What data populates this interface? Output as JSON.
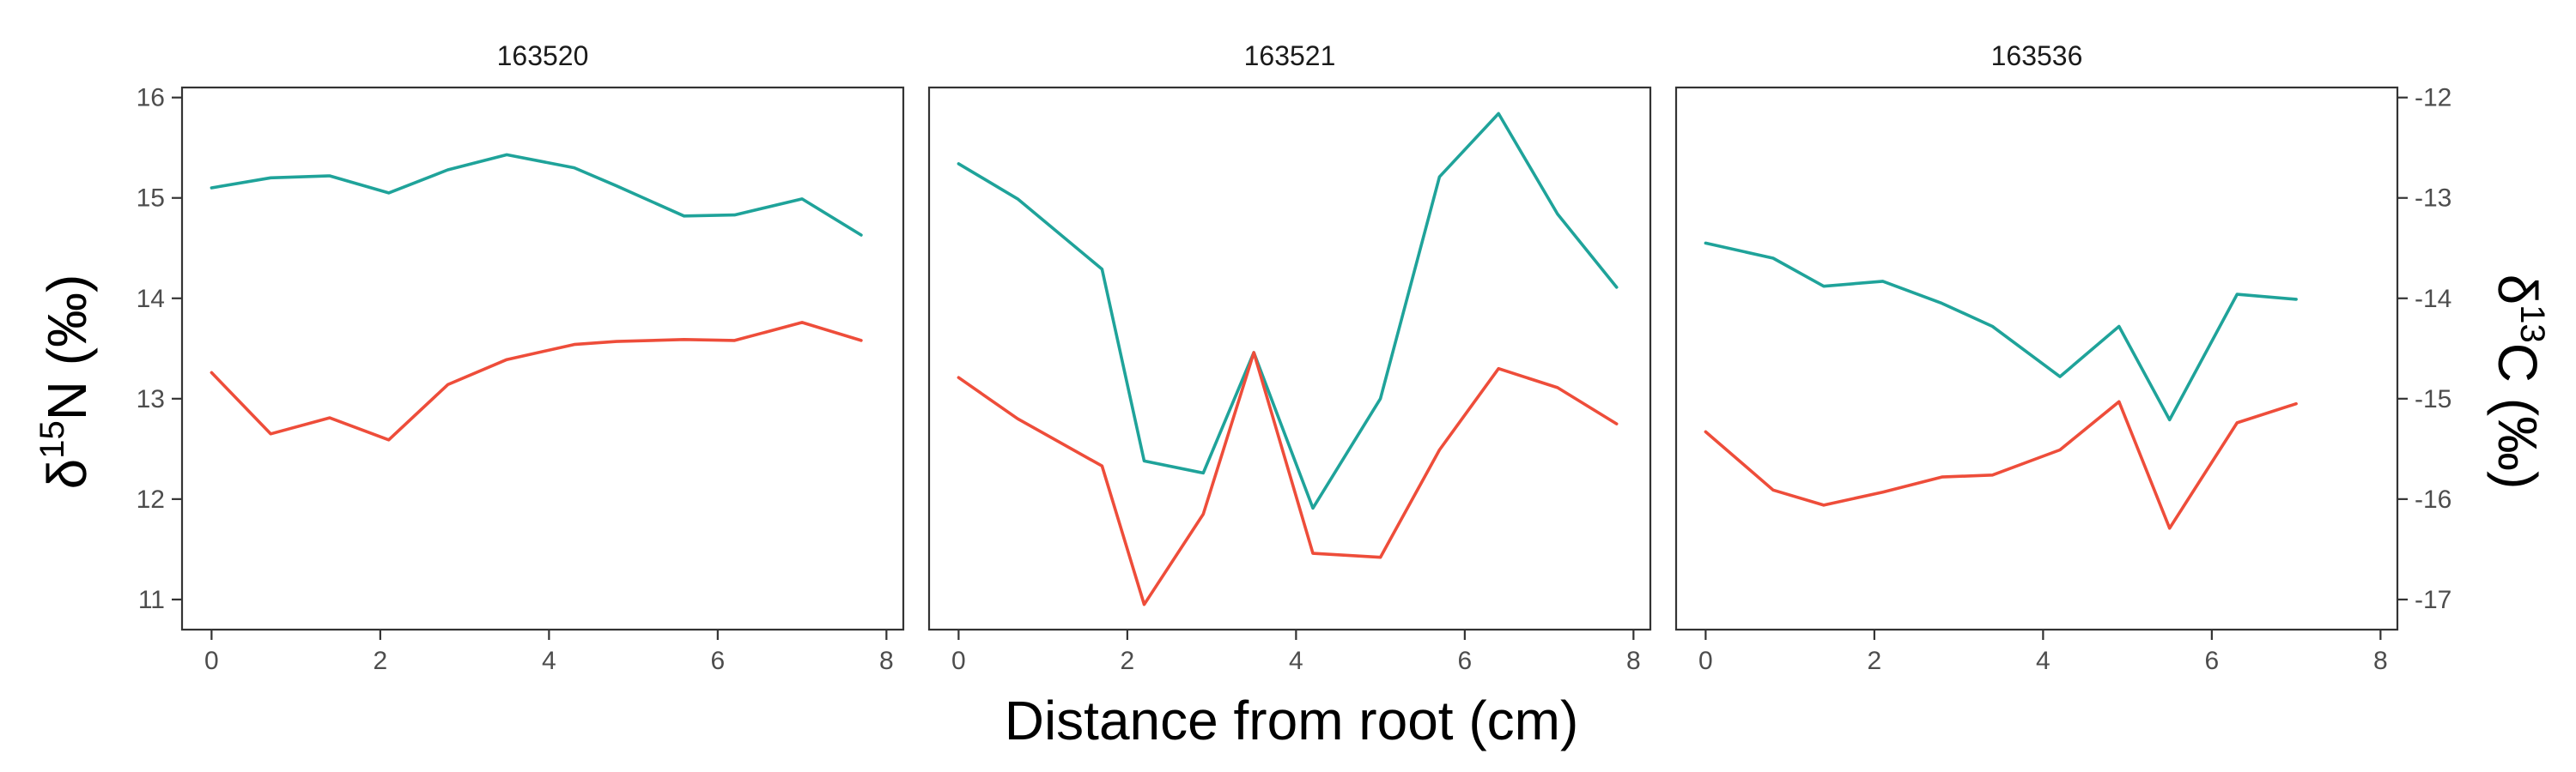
{
  "chart_data": {
    "type": "line",
    "xlabel": "Distance from root (cm)",
    "ylabel_left": {
      "base": "δ",
      "sup": "15",
      "rest": "N (‰)"
    },
    "ylabel_right": {
      "base": "δ",
      "sup": "13",
      "rest": "C (‰)"
    },
    "xlim": [
      -0.35,
      8.2
    ],
    "x_ticks": [
      0,
      2,
      4,
      6,
      8
    ],
    "left_axis": {
      "ylim": [
        10.7,
        16.1
      ],
      "ticks": [
        11,
        12,
        13,
        14,
        15,
        16
      ]
    },
    "right_axis": {
      "ylim": [
        -17.3,
        -11.9
      ],
      "ticks": [
        -17,
        -16,
        -15,
        -14,
        -13,
        -12
      ]
    },
    "grid": false,
    "colors": {
      "teal": "#1fa39a",
      "red": "#ee4d3a"
    },
    "panels": [
      {
        "title": "163520",
        "series": [
          {
            "color": "#1fa39a",
            "axis": "left",
            "x": [
              0,
              0.7,
              1.4,
              2.1,
              2.8,
              3.5,
              4.3,
              4.8,
              5.6,
              6.2,
              7.0,
              7.7
            ],
            "y": [
              15.1,
              15.2,
              15.22,
              15.05,
              15.28,
              15.43,
              15.3,
              15.12,
              14.82,
              14.83,
              14.99,
              14.63
            ]
          },
          {
            "color": "#ee4d3a",
            "axis": "left",
            "x": [
              0,
              0.7,
              1.4,
              2.1,
              2.8,
              3.5,
              4.3,
              4.8,
              5.6,
              6.2,
              7.0,
              7.7
            ],
            "y": [
              13.26,
              12.65,
              12.81,
              12.59,
              13.14,
              13.39,
              13.54,
              13.57,
              13.59,
              13.58,
              13.76,
              13.58
            ]
          }
        ]
      },
      {
        "title": "163521",
        "series": [
          {
            "color": "#1fa39a",
            "axis": "left",
            "x": [
              0,
              0.7,
              1.7,
              2.2,
              2.9,
              3.5,
              4.2,
              5.0,
              5.7,
              6.4,
              7.1,
              7.8
            ],
            "y": [
              15.34,
              14.99,
              14.29,
              12.38,
              12.26,
              13.46,
              11.91,
              13.0,
              15.21,
              15.84,
              14.84,
              14.11
            ]
          },
          {
            "color": "#ee4d3a",
            "axis": "left",
            "x": [
              0,
              0.7,
              1.7,
              2.2,
              2.9,
              3.5,
              4.2,
              5.0,
              5.7,
              6.4,
              7.1,
              7.8
            ],
            "y": [
              13.21,
              12.8,
              12.33,
              10.95,
              11.85,
              13.46,
              11.46,
              11.42,
              12.49,
              13.3,
              13.11,
              12.75
            ]
          }
        ]
      },
      {
        "title": "163536",
        "series": [
          {
            "color": "#1fa39a",
            "axis": "right",
            "x": [
              0,
              0.8,
              1.4,
              2.1,
              2.8,
              3.4,
              4.2,
              4.9,
              5.5,
              6.3,
              7.0
            ],
            "y": [
              -13.45,
              -13.6,
              -13.88,
              -13.83,
              -14.05,
              -14.28,
              -14.78,
              -14.28,
              -15.21,
              -13.96,
              -14.01
            ]
          },
          {
            "color": "#ee4d3a",
            "axis": "right",
            "x": [
              0,
              0.8,
              1.4,
              2.1,
              2.8,
              3.4,
              4.2,
              4.9,
              5.5,
              6.3,
              7.0
            ],
            "y": [
              -15.33,
              -15.91,
              -16.06,
              -15.93,
              -15.78,
              -15.76,
              -15.51,
              -15.03,
              -16.29,
              -15.24,
              -15.05
            ]
          }
        ]
      }
    ]
  }
}
